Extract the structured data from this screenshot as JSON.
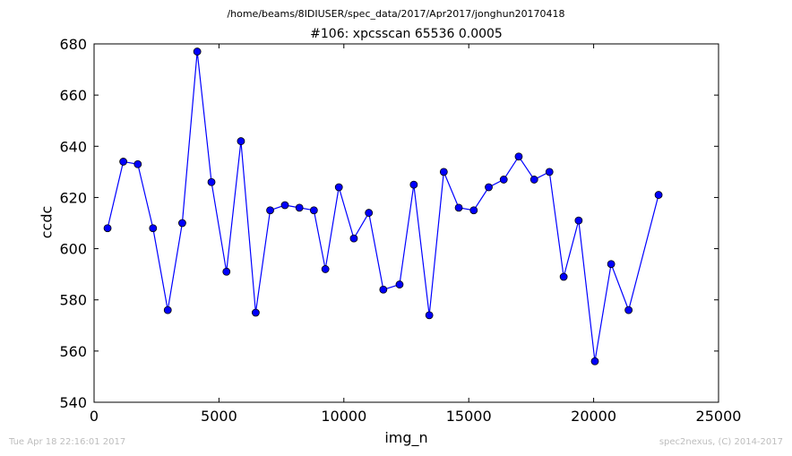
{
  "suptitle": "/home/beams/8IDIUSER/spec_data/2017/Apr2017/jonghun20170418",
  "footer": {
    "timestamp": "Tue Apr 18 22:16:01 2017",
    "credit": "spec2nexus, (C) 2014-2017"
  },
  "colors": {
    "line": "#0000ff",
    "marker_fill": "#0000ff",
    "marker_edge": "#000000"
  },
  "chart_data": {
    "type": "line",
    "title": "#106: xpcsscan 65536 0.0005",
    "xlabel": "img_n",
    "ylabel": "ccdc",
    "xlim": [
      0,
      25000
    ],
    "ylim": [
      540,
      680
    ],
    "xticks": [
      0,
      5000,
      10000,
      15000,
      20000,
      25000
    ],
    "yticks": [
      540,
      560,
      580,
      600,
      620,
      640,
      660,
      680
    ],
    "grid": false,
    "markers": true,
    "series": [
      {
        "x": [
          540,
          1170,
          1750,
          2360,
          2950,
          3530,
          4130,
          4700,
          5300,
          5880,
          6470,
          7050,
          7640,
          8220,
          8800,
          9260,
          9800,
          10400,
          11000,
          11580,
          12230,
          12800,
          13420,
          14000,
          14600,
          15200,
          15800,
          16400,
          17000,
          17620,
          18230,
          18800,
          19400,
          20050,
          20700,
          21400,
          22600
        ],
        "y": [
          608,
          634,
          633,
          608,
          576,
          610,
          677,
          626,
          591,
          642,
          575,
          615,
          617,
          616,
          615,
          592,
          624,
          604,
          614,
          584,
          586,
          625,
          574,
          630,
          616,
          615,
          624,
          627,
          636,
          627,
          630,
          589,
          611,
          556,
          594,
          576,
          621
        ]
      }
    ]
  }
}
